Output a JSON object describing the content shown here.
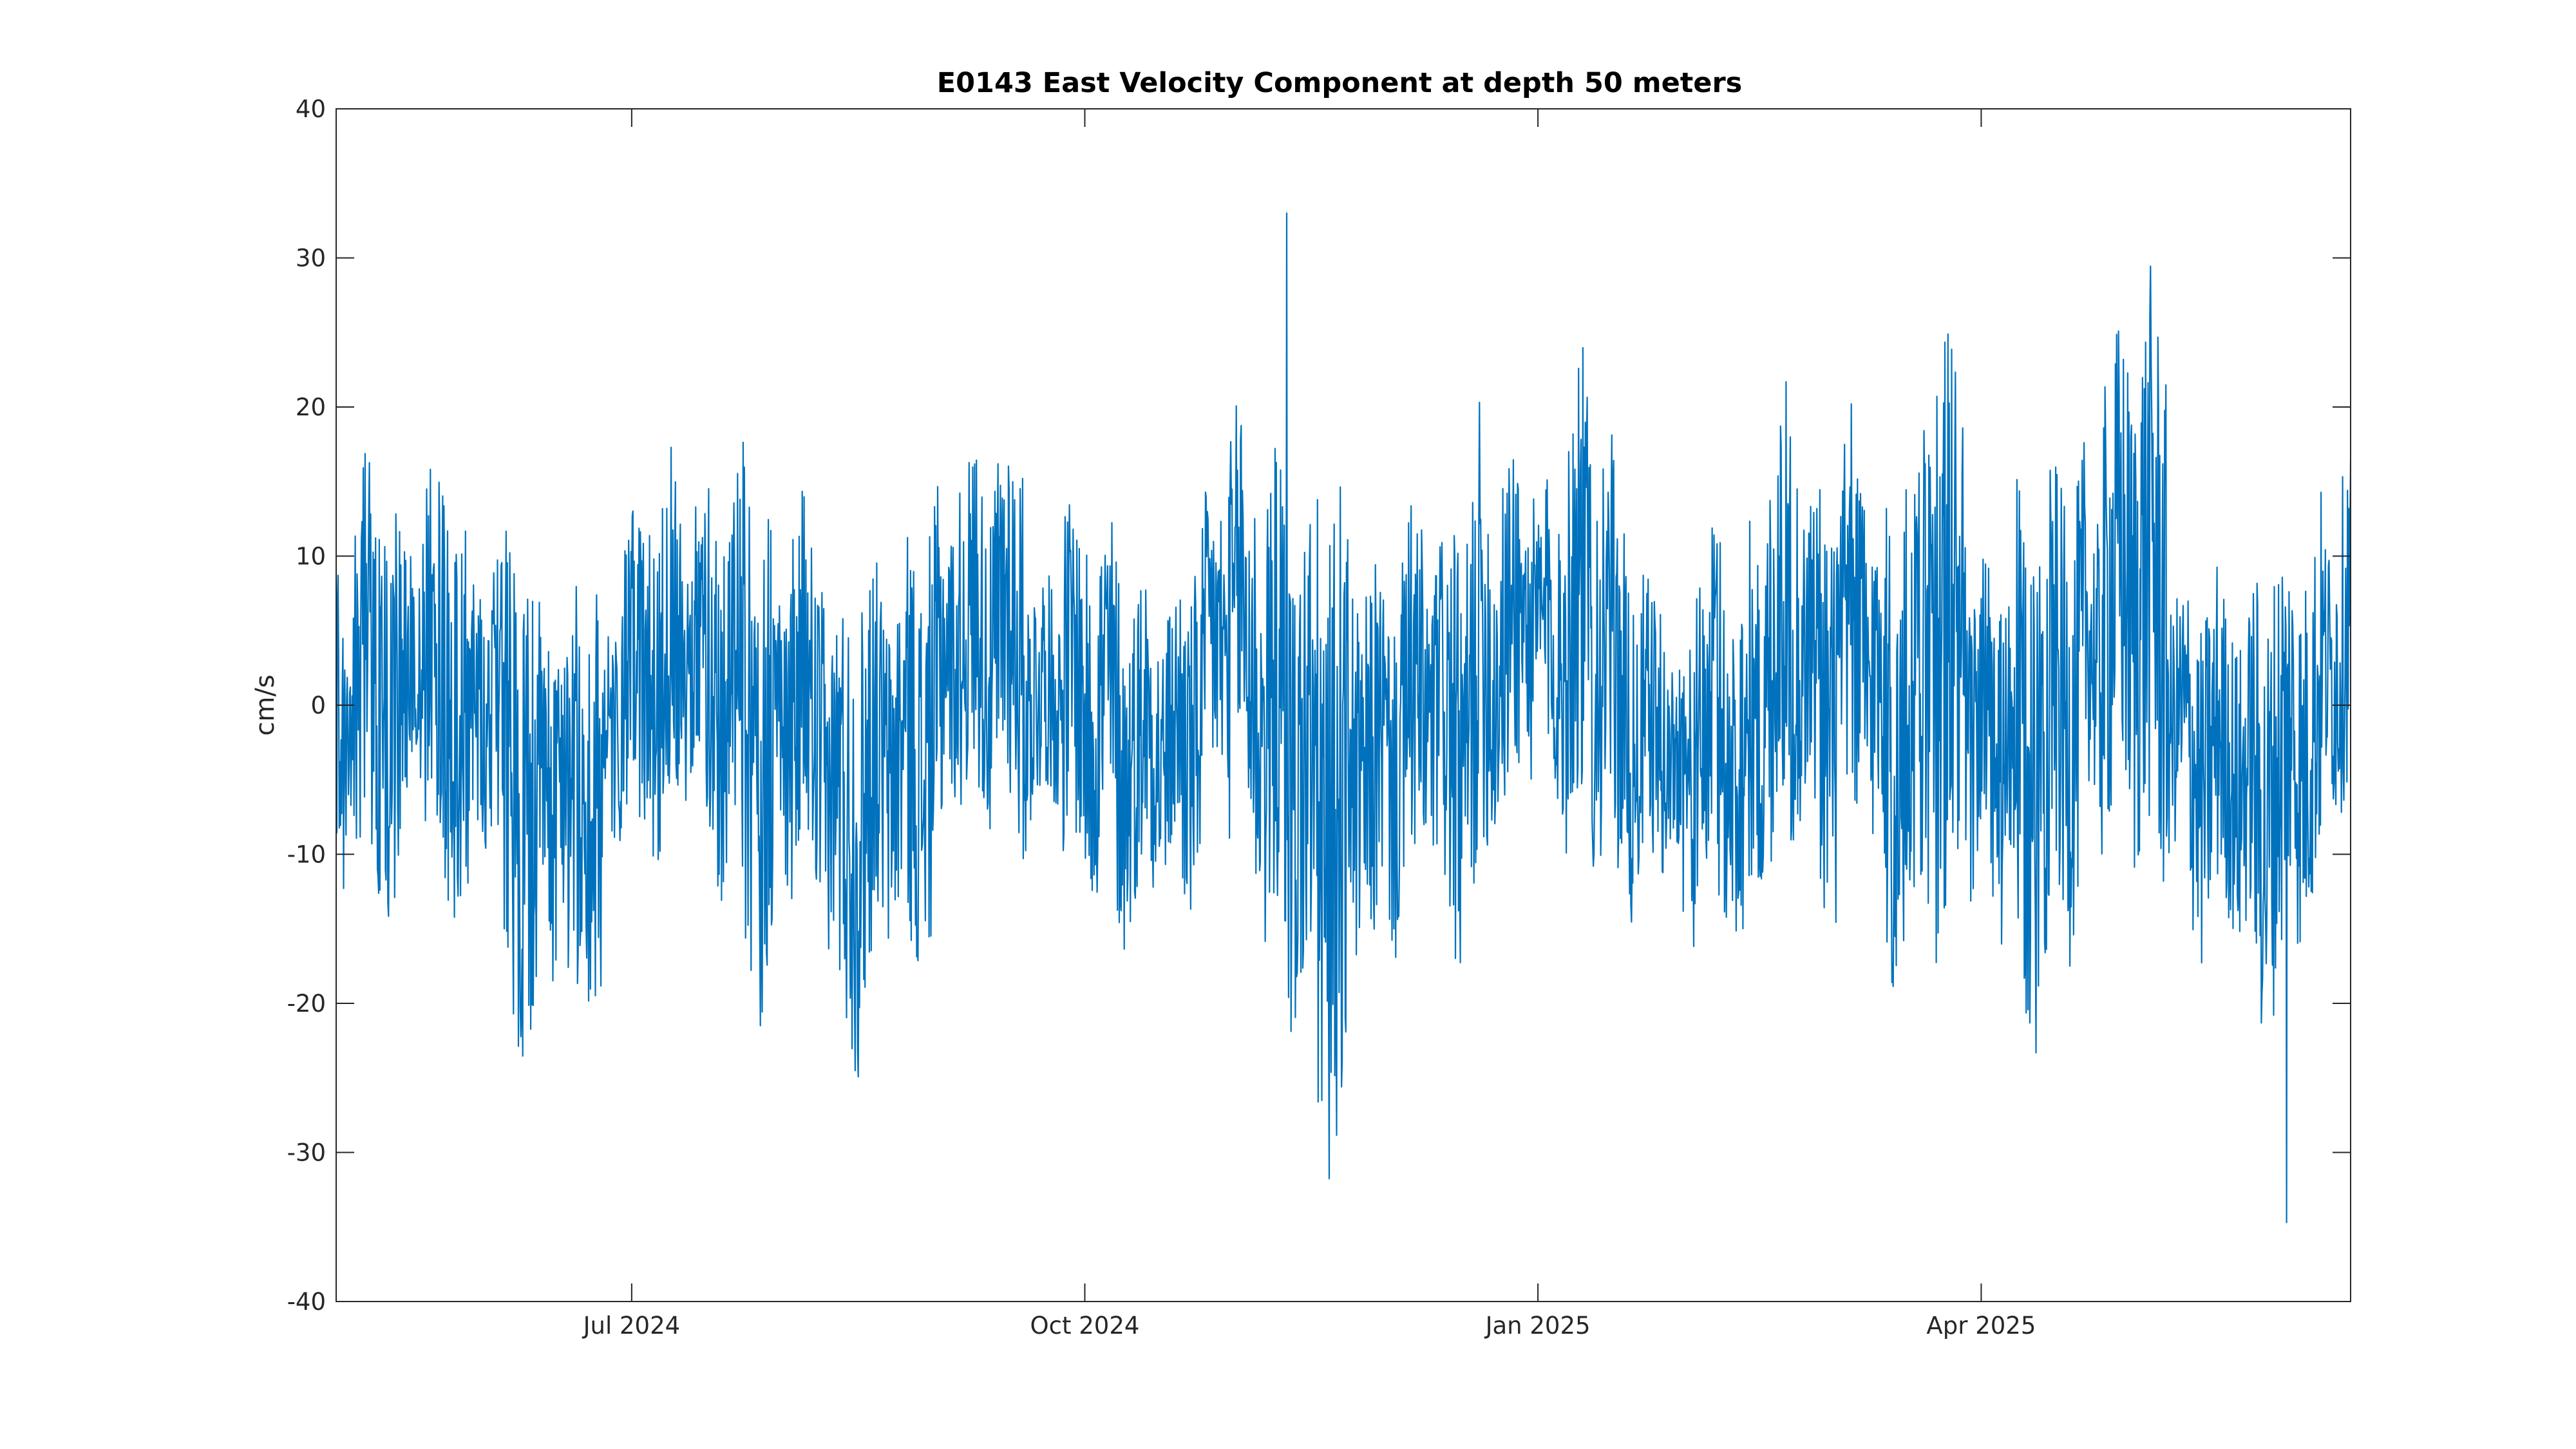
{
  "chart_data": {
    "type": "line",
    "title": "E0143 East Velocity Component at depth 50 meters",
    "xlabel": "",
    "ylabel": "cm/s",
    "xlim": [
      "2024-05-02",
      "2025-06-15"
    ],
    "ylim": [
      -40,
      40
    ],
    "grid": false,
    "legend": "none",
    "x_ticks": [
      {
        "date": "2024-07-01",
        "label": "Jul 2024"
      },
      {
        "date": "2024-10-01",
        "label": "Oct 2024"
      },
      {
        "date": "2025-01-01",
        "label": "Jan 2025"
      },
      {
        "date": "2025-04-01",
        "label": "Apr 2025"
      }
    ],
    "y_ticks": [
      {
        "value": 40,
        "label": "40"
      },
      {
        "value": 30,
        "label": "30"
      },
      {
        "value": 20,
        "label": "20"
      },
      {
        "value": 10,
        "label": "10"
      },
      {
        "value": 0,
        "label": "0"
      },
      {
        "value": -10,
        "label": "-10"
      },
      {
        "value": -20,
        "label": "-20"
      },
      {
        "value": -30,
        "label": "-30"
      },
      {
        "value": -40,
        "label": "-40"
      }
    ],
    "series": [
      {
        "color": "#0072bd",
        "x": [
          "2024-05-02",
          "2024-05-05",
          "2024-05-08",
          "2024-05-12",
          "2024-05-15",
          "2024-05-19",
          "2024-05-22",
          "2024-05-25",
          "2024-05-29",
          "2024-06-01",
          "2024-06-05",
          "2024-06-08",
          "2024-06-12",
          "2024-06-15",
          "2024-06-18",
          "2024-06-22",
          "2024-06-25",
          "2024-06-29",
          "2024-07-02",
          "2024-07-06",
          "2024-07-09",
          "2024-07-12",
          "2024-07-16",
          "2024-07-19",
          "2024-07-23",
          "2024-07-26",
          "2024-07-30",
          "2024-08-02",
          "2024-08-05",
          "2024-08-09",
          "2024-08-12",
          "2024-08-16",
          "2024-08-19",
          "2024-08-22",
          "2024-08-26",
          "2024-08-29",
          "2024-09-02",
          "2024-09-05",
          "2024-09-09",
          "2024-09-12",
          "2024-09-15",
          "2024-09-19",
          "2024-09-22",
          "2024-09-26",
          "2024-09-29",
          "2024-10-02",
          "2024-10-06",
          "2024-10-09",
          "2024-10-13",
          "2024-10-16",
          "2024-10-20",
          "2024-10-23",
          "2024-10-26",
          "2024-10-30",
          "2024-11-02",
          "2024-11-06",
          "2024-11-09",
          "2024-11-12",
          "2024-11-16",
          "2024-11-19",
          "2024-11-23",
          "2024-11-26",
          "2024-11-30",
          "2024-12-03",
          "2024-12-06",
          "2024-12-10",
          "2024-12-13",
          "2024-12-17",
          "2024-12-20",
          "2024-12-23",
          "2024-12-27",
          "2024-12-30",
          "2025-01-03",
          "2025-01-06",
          "2025-01-09",
          "2025-01-13",
          "2025-01-16",
          "2025-01-20",
          "2025-01-23",
          "2025-01-27",
          "2025-01-30",
          "2025-02-02",
          "2025-02-06",
          "2025-02-09",
          "2025-02-13",
          "2025-02-16",
          "2025-02-19",
          "2025-02-23",
          "2025-02-26",
          "2025-03-02",
          "2025-03-05",
          "2025-03-09",
          "2025-03-12",
          "2025-03-15",
          "2025-03-19",
          "2025-03-22",
          "2025-03-26",
          "2025-03-29",
          "2025-04-01",
          "2025-04-05",
          "2025-04-08",
          "2025-04-12",
          "2025-04-15",
          "2025-04-19",
          "2025-04-22",
          "2025-04-25",
          "2025-04-29",
          "2025-05-02",
          "2025-05-06",
          "2025-05-09",
          "2025-05-12",
          "2025-05-16",
          "2025-05-19",
          "2025-05-23",
          "2025-05-26",
          "2025-05-29",
          "2025-06-02",
          "2025-06-05",
          "2025-06-09",
          "2025-06-12",
          "2025-06-15"
        ],
        "values": [
          8,
          -12,
          16,
          -18,
          6,
          -9,
          14,
          -16,
          4,
          -7,
          11,
          -21,
          3,
          -13,
          8,
          -19,
          2,
          -6,
          12,
          -10,
          14,
          -4,
          9,
          -15,
          13,
          -22,
          7,
          -9,
          15,
          -12,
          4,
          -20,
          10,
          -14,
          6,
          -18,
          9,
          -5,
          13,
          -11,
          17,
          -8,
          6,
          -2,
          14,
          -7,
          16,
          -12,
          11,
          -9,
          5,
          -14,
          12,
          -4,
          17,
          -20,
          10,
          -24,
          3,
          -32,
          8,
          -16,
          10,
          -13,
          15,
          -6,
          12,
          -19,
          18,
          -9,
          14,
          -3,
          10,
          -8,
          22,
          -5,
          16,
          -12,
          9,
          -6,
          4,
          -11,
          14,
          -16,
          6,
          -14,
          20,
          -9,
          11,
          -19,
          17,
          -8,
          13,
          -22,
          23,
          -5,
          29,
          -10,
          12,
          -14,
          8,
          -24,
          14,
          -19,
          11,
          -8,
          22,
          -3,
          27,
          -8,
          7,
          -14,
          10,
          -12,
          5,
          -20,
          11,
          -16,
          9,
          -6,
          13
        ],
        "max": {
          "date": "2024-11-11",
          "value": 33
        },
        "min": {
          "date": "2025-06-02",
          "value": -34.7
        }
      }
    ]
  }
}
